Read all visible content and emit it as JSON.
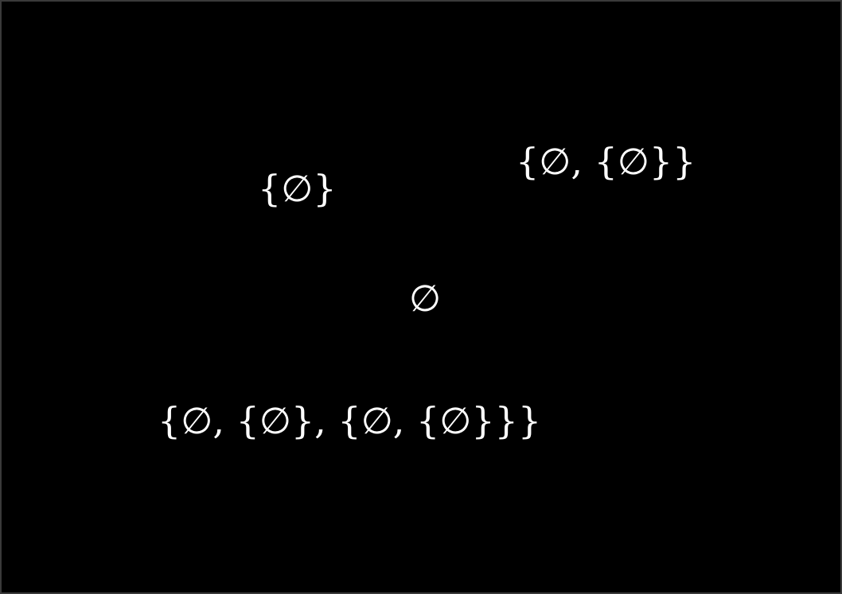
{
  "canvas": {
    "background_color": "#000000",
    "text_color": "#ffffff"
  },
  "expressions": {
    "empty_set": "∅",
    "set_of_empty": "{∅}",
    "set_of_two": "{∅, {∅}}",
    "set_of_three": "{∅, {∅}, {∅, {∅}}}"
  }
}
